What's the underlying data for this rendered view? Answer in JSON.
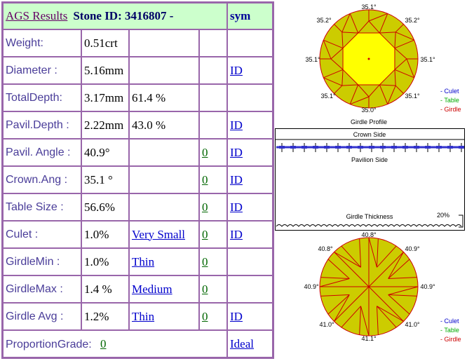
{
  "header": {
    "title": "AGS Results",
    "stone_id": "Stone ID:  3416807 -",
    "sym": "sym"
  },
  "rows": [
    {
      "label": "Weight:",
      "v1": "0.51crt",
      "v2": "",
      "v3": "",
      "v4": ""
    },
    {
      "label": "Diameter :",
      "v1": "5.16mm",
      "v2": "",
      "v3": "",
      "v4": "ID"
    },
    {
      "label": "TotalDepth:",
      "v1": "3.17mm",
      "v2": "61.4 %",
      "v3": "",
      "v4": ""
    },
    {
      "label": "Pavil.Depth :",
      "v1": "2.22mm",
      "v2": "43.0 %",
      "v3": "",
      "v4": "ID"
    },
    {
      "label": "Pavil. Angle :",
      "v1": "40.9°",
      "v2": "",
      "v3": "0",
      "v4": "ID"
    },
    {
      "label": "Crown.Ang :",
      "v1": "35.1 °",
      "v2": "",
      "v3": "0",
      "v4": "ID"
    },
    {
      "label": "Table Size :",
      "v1": "56.6%",
      "v2": "",
      "v3": "0",
      "v4": "ID"
    },
    {
      "label": "Culet :",
      "v1": "1.0%",
      "v2": "Very Small",
      "v3": "0",
      "v4": "ID"
    },
    {
      "label": "GirdleMin :",
      "v1": "1.0%",
      "v2": "Thin",
      "v3": "0",
      "v4": ""
    },
    {
      "label": "GirdleMax :",
      "v1": "1.4 %",
      "v2": "Medium",
      "v3": "0",
      "v4": ""
    },
    {
      "label": "Girdle Avg :",
      "v1": "1.2%",
      "v2": "Thin",
      "v3": "0",
      "v4": "ID"
    }
  ],
  "footer": {
    "label": "ProportionGrade:",
    "value": "0",
    "grade": "Ideal"
  },
  "crown_diagram": {
    "angles": {
      "top": "35.1°",
      "top_left": "35.2°",
      "top_right": "35.2°",
      "left": "35.1°",
      "right": "35.1°",
      "bottom_left": "35.1°",
      "bottom_right": "35.1°",
      "bottom": "35.0°"
    },
    "caption": "Girdle Profile"
  },
  "pavilion_diagram": {
    "angles": {
      "top": "40.8°",
      "top_left": "40.8°",
      "top_right": "40.9°",
      "left": "40.9°",
      "right": "40.9°",
      "bottom_left": "41.0°",
      "bottom_right": "41.0°",
      "bottom": "41.1°"
    }
  },
  "profile": {
    "crown_side": "Crown Side",
    "pavilion_side": "Pavilion Side",
    "girdle_thickness": "Girdle Thickness",
    "percent": "20%"
  },
  "legend": {
    "culet": "- Culet",
    "table": "- Table",
    "girdle": "- Girdle"
  },
  "colors": {
    "header_bg": "#ccffcc",
    "border": "#9966aa",
    "label": "#4a3d99",
    "facet_fill": "#cccc00",
    "table_fill": "#ffff00",
    "facet_line": "#cc0000",
    "culet_legend": "#0000cc",
    "table_legend": "#00aa00",
    "girdle_legend": "#cc0000"
  }
}
